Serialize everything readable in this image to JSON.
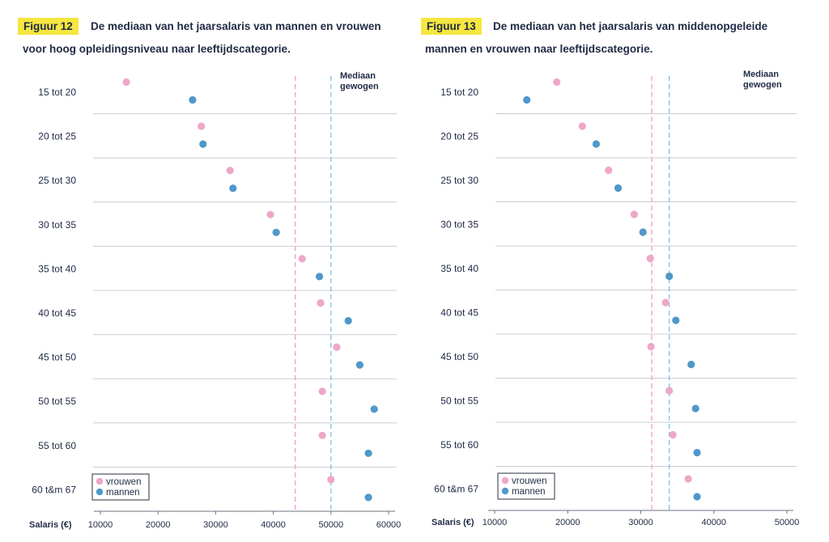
{
  "colors": {
    "vrouwen": "#eea7c8",
    "mannen": "#4f98c9",
    "badge": "#f6e640",
    "text": "#1f2a44",
    "separator": "#c9cdd6",
    "median_vrouwen": "#eea7c8",
    "median_mannen": "#8ec0e0"
  },
  "figures": [
    {
      "badge": "Figuur 12",
      "title_line1": "De mediaan van het jaarsalaris van mannen en vrouwen",
      "title_line2": "voor hoog opleidingsniveau naar leeftijdscategorie."
    },
    {
      "badge": "Figuur 13",
      "title_line1": "De mediaan van het jaarsalaris van middenopgeleide",
      "title_line2": "mannen en vrouwen naar leeftijdscategorie."
    }
  ],
  "chart_data": [
    {
      "type": "scatter",
      "title": "De mediaan van het jaarsalaris van mannen en vrouwen voor hoog opleidingsniveau naar leeftijdscategorie.",
      "xlabel": "Salaris (€)",
      "xlim": [
        10000,
        60000
      ],
      "xticks": [
        "10000",
        "20000",
        "30000",
        "40000",
        "50000",
        "60000"
      ],
      "xtick_values": [
        10000,
        20000,
        30000,
        40000,
        50000,
        60000
      ],
      "categories": [
        "15 tot 20",
        "20 tot 25",
        "25 tot 30",
        "30 tot 35",
        "35 tot 40",
        "40 tot 45",
        "45 tot 50",
        "50 tot 55",
        "55 tot 60",
        "60 t&m 67"
      ],
      "series": [
        {
          "name": "vrouwen",
          "values": [
            14500,
            27500,
            32500,
            39500,
            45000,
            48200,
            51000,
            48500,
            48500,
            50000
          ]
        },
        {
          "name": "mannen",
          "values": [
            26000,
            27800,
            33000,
            40500,
            48000,
            53000,
            55000,
            57500,
            56500,
            56500
          ]
        }
      ],
      "median_label_line1": "Mediaan",
      "median_label_line2": "gewogen",
      "median_lines": [
        {
          "series": "vrouwen",
          "value": 43800
        },
        {
          "series": "mannen",
          "value": 50000
        }
      ],
      "legend": "bottom-left"
    },
    {
      "type": "scatter",
      "title": "De mediaan van het jaarsalaris van middenopgeleide mannen en vrouwen naar leeftijdscategorie.",
      "xlabel": "Salaris (€)",
      "xlim": [
        10000,
        50000
      ],
      "xticks": [
        "10000",
        "20000",
        "30000",
        "40000",
        "50000"
      ],
      "xtick_values": [
        10000,
        20000,
        30000,
        40000,
        50000
      ],
      "categories": [
        "15 tot 20",
        "20 tot 25",
        "25 tot 30",
        "30 tot 35",
        "35 tot 40",
        "40 tot 45",
        "45 tot 50",
        "50 tot 55",
        "55 tot 60",
        "60 t&m 67"
      ],
      "series": [
        {
          "name": "vrouwen",
          "values": [
            18500,
            22000,
            25600,
            29100,
            31300,
            33400,
            31400,
            33900,
            34400,
            36500
          ]
        },
        {
          "name": "mannen",
          "values": [
            14400,
            23900,
            26900,
            30300,
            33900,
            34800,
            36900,
            37500,
            37700,
            37700
          ]
        }
      ],
      "median_label_line1": "Mediaan",
      "median_label_line2": "gewogen",
      "median_lines": [
        {
          "series": "vrouwen",
          "value": 31500
        },
        {
          "series": "mannen",
          "value": 33900
        }
      ],
      "legend": "bottom-left"
    }
  ]
}
